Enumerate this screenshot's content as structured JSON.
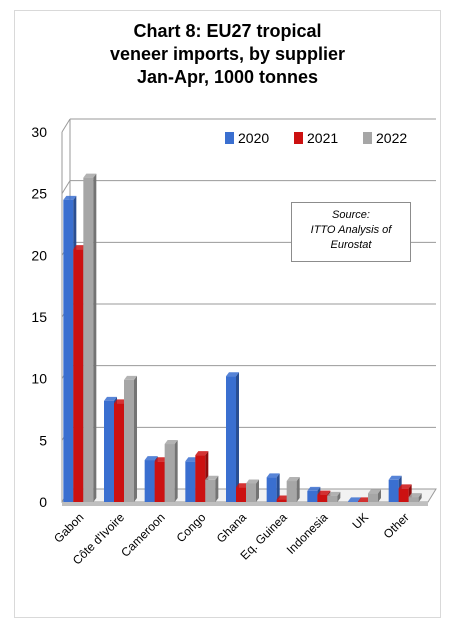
{
  "chart_data": {
    "type": "bar",
    "title_lines": [
      "Chart 8: EU27 tropical",
      "veneer imports, by supplier",
      "Jan-Apr, 1000 tonnes"
    ],
    "categories": [
      "Gabon",
      "Côte d'Ivoire",
      "Cameroon",
      "Congo",
      "Ghana",
      "Eq. Guinea",
      "Indonesia",
      "UK",
      "Other"
    ],
    "series": [
      {
        "name": "2020",
        "color": "#3a6fd0",
        "values": [
          24.5,
          8.2,
          3.4,
          3.3,
          10.2,
          2.0,
          0.9,
          0.05,
          1.8
        ]
      },
      {
        "name": "2021",
        "color": "#cc1111",
        "values": [
          20.5,
          8.0,
          3.3,
          3.8,
          1.2,
          0.2,
          0.6,
          0.05,
          1.1
        ]
      },
      {
        "name": "2022",
        "color": "#a6a6a6",
        "values": [
          26.3,
          9.9,
          4.7,
          1.8,
          1.5,
          1.7,
          0.5,
          0.7,
          0.4
        ]
      }
    ],
    "ylim": [
      0,
      30
    ],
    "yticks": [
      "0",
      "5",
      "10",
      "15",
      "20",
      "25",
      "30"
    ],
    "grid": true,
    "legend_position": "top-right",
    "annotation": [
      "Source:",
      "ITTO Analysis of",
      "Eurostat"
    ]
  }
}
